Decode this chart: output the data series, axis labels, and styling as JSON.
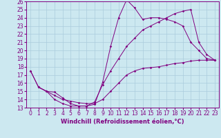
{
  "xlabel": "Windchill (Refroidissement éolien,°C)",
  "line_color": "#800080",
  "bg_color": "#cce8f0",
  "grid_color": "#aaccdd",
  "xlim": [
    -0.5,
    23.5
  ],
  "ylim": [
    13,
    26
  ],
  "xticks": [
    0,
    1,
    2,
    3,
    4,
    5,
    6,
    7,
    8,
    9,
    10,
    11,
    12,
    13,
    14,
    15,
    16,
    17,
    18,
    19,
    20,
    21,
    22,
    23
  ],
  "yticks": [
    13,
    14,
    15,
    16,
    17,
    18,
    19,
    20,
    21,
    22,
    23,
    24,
    25,
    26
  ],
  "line1_x": [
    0,
    1,
    2,
    3,
    4,
    5,
    6,
    7,
    8,
    9,
    10,
    11,
    12,
    13,
    14,
    15,
    16,
    17,
    18,
    19,
    20,
    21,
    22,
    23
  ],
  "line1_y": [
    17.5,
    15.5,
    15.0,
    14.0,
    13.5,
    13.2,
    13.2,
    13.2,
    13.4,
    16.1,
    20.5,
    24.0,
    26.2,
    25.2,
    23.8,
    24.0,
    24.0,
    23.8,
    23.5,
    23.0,
    21.0,
    20.0,
    19.0,
    18.8
  ],
  "line2_x": [
    1,
    2,
    3,
    4,
    5,
    6,
    7,
    8,
    9,
    10,
    11,
    12,
    13,
    14,
    15,
    16,
    17,
    18,
    19,
    20,
    21,
    22,
    23
  ],
  "line2_y": [
    15.5,
    15.0,
    14.9,
    14.2,
    13.5,
    13.2,
    13.2,
    13.7,
    15.8,
    17.5,
    19.0,
    20.5,
    21.5,
    22.5,
    23.0,
    23.5,
    24.0,
    24.5,
    24.8,
    25.0,
    21.0,
    19.5,
    18.8
  ],
  "line3_x": [
    0,
    1,
    2,
    3,
    4,
    5,
    6,
    7,
    8,
    9,
    10,
    11,
    12,
    13,
    14,
    15,
    16,
    17,
    18,
    19,
    20,
    21,
    22,
    23
  ],
  "line3_y": [
    17.5,
    15.5,
    15.0,
    14.5,
    14.0,
    13.8,
    13.6,
    13.5,
    13.5,
    14.0,
    15.0,
    16.0,
    17.0,
    17.5,
    17.8,
    17.9,
    18.0,
    18.2,
    18.4,
    18.5,
    18.7,
    18.8,
    18.8,
    18.8
  ],
  "tick_fontsize": 5.5,
  "xlabel_fontsize": 6.0,
  "lw": 0.7,
  "ms": 1.8
}
